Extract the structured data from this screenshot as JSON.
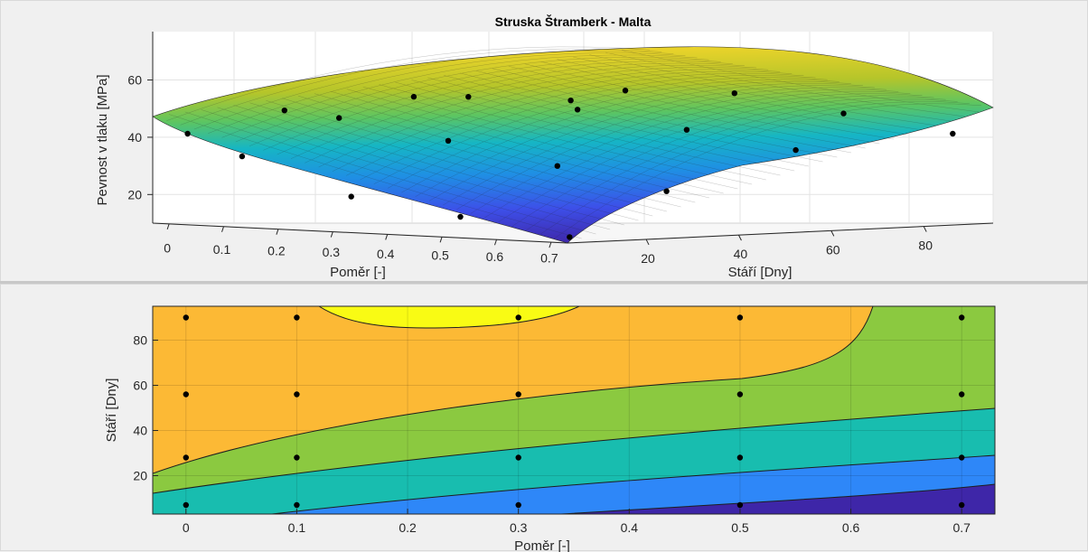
{
  "chart_data": [
    {
      "type": "surface",
      "title": "Struska Štramberk - Malta",
      "xlabel": "Poměr [-]",
      "ylabel": "Stáří [Dny]",
      "zlabel": "Pevnost v tlaku [MPa]",
      "x_ticks": [
        "0",
        "0.1",
        "0.2",
        "0.3",
        "0.4",
        "0.5",
        "0.6",
        "0.7"
      ],
      "y_ticks": [
        "20",
        "40",
        "60",
        "80"
      ],
      "z_ticks": [
        "20",
        "40",
        "60"
      ],
      "xlim": [
        -0.03,
        0.73
      ],
      "ylim": [
        3,
        95
      ],
      "zlim": [
        10,
        75
      ],
      "grid": true,
      "colormap": "parula",
      "points": [
        {
          "x": 0,
          "y": 7,
          "z": 46
        },
        {
          "x": 0,
          "y": 28,
          "z": 55
        },
        {
          "x": 0,
          "y": 56,
          "z": 60
        },
        {
          "x": 0,
          "y": 90,
          "z": 58
        },
        {
          "x": 0.1,
          "y": 7,
          "z": 38
        },
        {
          "x": 0.1,
          "y": 28,
          "z": 53
        },
        {
          "x": 0.1,
          "y": 56,
          "z": 61
        },
        {
          "x": 0.1,
          "y": 90,
          "z": 63
        },
        {
          "x": 0.3,
          "y": 7,
          "z": 24
        },
        {
          "x": 0.3,
          "y": 28,
          "z": 46
        },
        {
          "x": 0.3,
          "y": 56,
          "z": 58
        },
        {
          "x": 0.3,
          "y": 90,
          "z": 64
        },
        {
          "x": 0.5,
          "y": 7,
          "z": 18
        },
        {
          "x": 0.5,
          "y": 28,
          "z": 38
        },
        {
          "x": 0.5,
          "y": 56,
          "z": 52
        },
        {
          "x": 0.5,
          "y": 90,
          "z": 58
        },
        {
          "x": 0.7,
          "y": 7,
          "z": 12
        },
        {
          "x": 0.7,
          "y": 28,
          "z": 30
        },
        {
          "x": 0.7,
          "y": 56,
          "z": 46
        },
        {
          "x": 0.7,
          "y": 90,
          "z": 52
        }
      ]
    },
    {
      "type": "contour",
      "xlabel": "Poměr [-]",
      "ylabel": "Stáří [Dny]",
      "x_ticks": [
        "0",
        "0.1",
        "0.2",
        "0.3",
        "0.4",
        "0.5",
        "0.6",
        "0.7"
      ],
      "y_ticks": [
        "20",
        "40",
        "60",
        "80"
      ],
      "xlim": [
        -0.03,
        0.73
      ],
      "ylim": [
        3,
        95
      ],
      "grid": true,
      "region_colors": [
        "#3e26a8",
        "#2e87f8",
        "#18bdaf",
        "#8bc940",
        "#fcb935",
        "#f9fb14"
      ],
      "points": [
        {
          "x": 0,
          "y": 7
        },
        {
          "x": 0,
          "y": 28
        },
        {
          "x": 0,
          "y": 56
        },
        {
          "x": 0,
          "y": 90
        },
        {
          "x": 0.1,
          "y": 7
        },
        {
          "x": 0.1,
          "y": 28
        },
        {
          "x": 0.1,
          "y": 56
        },
        {
          "x": 0.1,
          "y": 90
        },
        {
          "x": 0.3,
          "y": 7
        },
        {
          "x": 0.3,
          "y": 28
        },
        {
          "x": 0.3,
          "y": 56
        },
        {
          "x": 0.3,
          "y": 90
        },
        {
          "x": 0.5,
          "y": 7
        },
        {
          "x": 0.5,
          "y": 28
        },
        {
          "x": 0.5,
          "y": 56
        },
        {
          "x": 0.5,
          "y": 90
        },
        {
          "x": 0.7,
          "y": 7
        },
        {
          "x": 0.7,
          "y": 28
        },
        {
          "x": 0.7,
          "y": 56
        },
        {
          "x": 0.7,
          "y": 90
        }
      ]
    }
  ]
}
